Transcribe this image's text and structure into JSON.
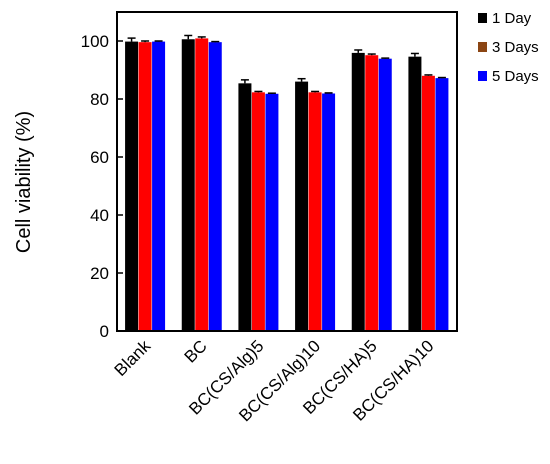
{
  "chart_data": {
    "type": "bar",
    "title": "",
    "xlabel": "",
    "ylabel": "Cell viability (%)",
    "ylim": [
      0,
      110
    ],
    "yticks": [
      0,
      20,
      40,
      60,
      80,
      100
    ],
    "grid": false,
    "legend_position": "top-right-outside",
    "categories": [
      "Blank",
      "BC",
      "BC(CS/Alg)5",
      "BC(CS/Alg)10",
      "BC(CS/HA)5",
      "BC(CS/HA)10"
    ],
    "series": [
      {
        "name": "1 Day",
        "color": "#000000",
        "values": [
          99.8,
          100.6,
          85.4,
          86.0,
          95.9,
          94.6
        ],
        "errors": [
          1.2,
          1.3,
          1.2,
          1.0,
          1.0,
          1.1
        ]
      },
      {
        "name": "3 Days",
        "color": "#ff0000",
        "legend_color": "#8b4513",
        "values": [
          99.6,
          100.9,
          82.3,
          82.3,
          95.1,
          88.0
        ],
        "errors": [
          0.4,
          0.5,
          0.3,
          0.3,
          0.4,
          0.3
        ]
      },
      {
        "name": "5 Days",
        "color": "#0000ff",
        "values": [
          99.8,
          99.6,
          81.8,
          81.9,
          93.9,
          87.2
        ],
        "errors": [
          0.2,
          0.2,
          0.2,
          0.2,
          0.2,
          0.2
        ]
      }
    ]
  }
}
